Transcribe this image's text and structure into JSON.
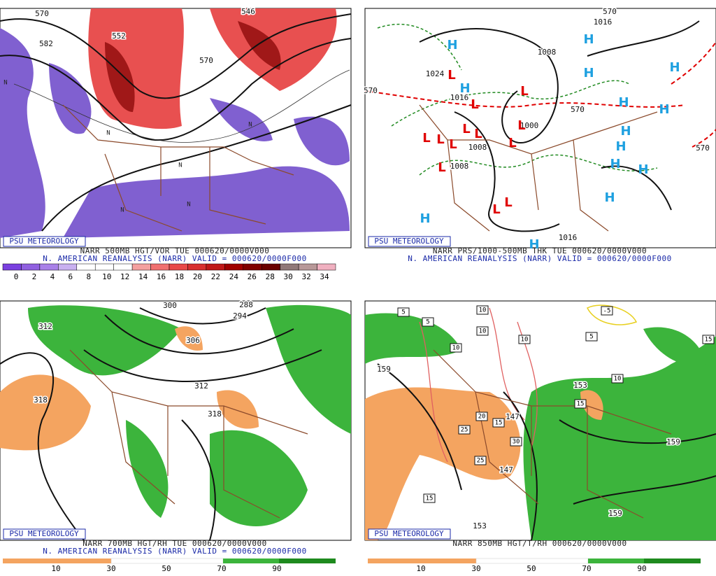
{
  "panels": [
    {
      "label": "PSU METEOROLOGY",
      "caption": "NARR 500MB HGT/VOR TUE 000620/0000V000",
      "subcaption": "N. AMERICAN REANALYSIS (NARR) VALID = 000620/0000F000",
      "colorbar_ticks": [
        0,
        2,
        4,
        6,
        8,
        10,
        12,
        14,
        16,
        18,
        20,
        22,
        24,
        26,
        28,
        30,
        32,
        34
      ],
      "contour_labels": [
        "570",
        "552",
        "546",
        "582",
        "570"
      ],
      "markers": [
        "N",
        "N",
        "N",
        "N",
        "N",
        "N"
      ]
    },
    {
      "label": "PSU METEOROLOGY",
      "caption": "NARR PRS/1000-500MB THK TUE 000620/0000V000",
      "subcaption": "N. AMERICAN REANALYSIS (NARR) VALID = 000620/0000F000",
      "contour_labels": [
        "1016",
        "1008",
        "1024",
        "1016",
        "1000",
        "1008",
        "1008",
        "1016",
        "570",
        "570",
        "570",
        "570"
      ],
      "markers": [
        "H",
        "H",
        "H",
        "H",
        "H",
        "H",
        "H",
        "H",
        "H",
        "H",
        "H",
        "H",
        "H",
        "H",
        "L",
        "L",
        "L",
        "L",
        "L",
        "L",
        "L",
        "L",
        "L",
        "L",
        "L",
        "L",
        "L"
      ]
    },
    {
      "label": "PSU METEOROLOGY",
      "caption": "NARR 700MB HGT/RH TUE 000620/0000V000",
      "subcaption": "N. AMERICAN REANALYSIS (NARR) VALID = 000620/0000F000",
      "colorbar_ticks": [
        10,
        30,
        50,
        70,
        90
      ],
      "contour_labels": [
        "300",
        "288",
        "294",
        "306",
        "312",
        "312",
        "318",
        "318"
      ]
    },
    {
      "label": "PSU METEOROLOGY",
      "caption": "NARR 850MB HGT/T/RH 000620/0000V000",
      "colorbar_ticks": [
        10,
        30,
        50,
        70,
        90
      ],
      "contour_labels": [
        "159",
        "153",
        "147",
        "147",
        "159",
        "159",
        "153"
      ],
      "boxed_labels": [
        "5",
        "5",
        "10",
        "10",
        "10",
        "10",
        "10",
        "-5",
        "5",
        "15",
        "15",
        "20",
        "15",
        "25",
        "30",
        "25",
        "15"
      ]
    }
  ]
}
